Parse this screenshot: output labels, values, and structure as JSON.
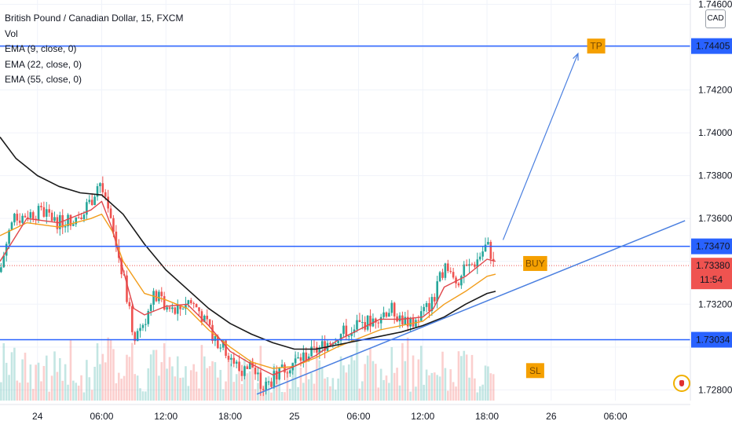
{
  "legend": {
    "title": "British Pound / Canadian Dollar, 15, FXCM",
    "vol": "Vol",
    "ema9": "EMA (9, close, 0)",
    "ema22": "EMA (22, close, 0)",
    "ema55": "EMA (55, close, 0)"
  },
  "currency": "CAD",
  "colors": {
    "up": "#26a69a",
    "down": "#ef5350",
    "ema9": "#e0474c",
    "ema22": "#f29d1b",
    "ema55": "#1a1a1a",
    "hline": "#2962ff",
    "label_box": "#f5a000",
    "price_box": "#ef5350"
  },
  "chart_data": {
    "type": "candlestick",
    "symbol": "GBPCAD",
    "timeframe": "15",
    "ylim": [
      1.7275,
      1.7462
    ],
    "y_ticks": [
      {
        "value": 1.728,
        "label": "1.72800"
      },
      {
        "value": 1.73,
        "label": ""
      },
      {
        "value": 1.732,
        "label": "1.73200"
      },
      {
        "value": 1.734,
        "label": ""
      },
      {
        "value": 1.736,
        "label": "1.73600"
      },
      {
        "value": 1.738,
        "label": "1.73800"
      },
      {
        "value": 1.74,
        "label": "1.74000"
      },
      {
        "value": 1.742,
        "label": "1.74200"
      },
      {
        "value": 1.744,
        "label": ""
      },
      {
        "value": 1.746,
        "label": "1.74600"
      }
    ],
    "x_ticks": [
      {
        "t": 0,
        "label": "24"
      },
      {
        "t": 6,
        "label": "06:00"
      },
      {
        "t": 12,
        "label": "12:00"
      },
      {
        "t": 18,
        "label": "18:00"
      },
      {
        "t": 24,
        "label": "25"
      },
      {
        "t": 30,
        "label": "06:00"
      },
      {
        "t": 36,
        "label": "12:00"
      },
      {
        "t": 42,
        "label": "18:00"
      },
      {
        "t": 48,
        "label": "26"
      },
      {
        "t": 54,
        "label": "06:00"
      }
    ],
    "xlim_hours": [
      -3.5,
      61
    ],
    "price_path": [
      [
        -3.5,
        1.7335
      ],
      [
        -2.5,
        1.7358
      ],
      [
        -1,
        1.7362
      ],
      [
        0.5,
        1.7363
      ],
      [
        2,
        1.7358
      ],
      [
        3.5,
        1.736
      ],
      [
        5,
        1.7368
      ],
      [
        5.8,
        1.7378
      ],
      [
        7,
        1.7355
      ],
      [
        8,
        1.7333
      ],
      [
        9,
        1.7305
      ],
      [
        10,
        1.7312
      ],
      [
        11,
        1.7325
      ],
      [
        12,
        1.7318
      ],
      [
        13,
        1.7316
      ],
      [
        14,
        1.7322
      ],
      [
        15,
        1.7318
      ],
      [
        16,
        1.7308
      ],
      [
        17,
        1.7302
      ],
      [
        18,
        1.7296
      ],
      [
        19,
        1.7288
      ],
      [
        20,
        1.7292
      ],
      [
        21,
        1.728
      ],
      [
        22,
        1.7285
      ],
      [
        23,
        1.729
      ],
      [
        24,
        1.7293
      ],
      [
        25,
        1.7296
      ],
      [
        26,
        1.7298
      ],
      [
        27,
        1.7302
      ],
      [
        28,
        1.7305
      ],
      [
        29,
        1.7308
      ],
      [
        30,
        1.731
      ],
      [
        31,
        1.7312
      ],
      [
        32,
        1.7315
      ],
      [
        33,
        1.7318
      ],
      [
        34,
        1.7313
      ],
      [
        35,
        1.731
      ],
      [
        36,
        1.7316
      ],
      [
        37,
        1.7322
      ],
      [
        38,
        1.7338
      ],
      [
        39,
        1.733
      ],
      [
        40,
        1.7336
      ],
      [
        41,
        1.734
      ],
      [
        42,
        1.7348
      ],
      [
        42.8,
        1.7338
      ]
    ],
    "ema9": [
      [
        -3.5,
        1.734
      ],
      [
        -1,
        1.736
      ],
      [
        2,
        1.7358
      ],
      [
        5,
        1.7364
      ],
      [
        6,
        1.7368
      ],
      [
        7,
        1.7355
      ],
      [
        8,
        1.7336
      ],
      [
        9,
        1.7318
      ],
      [
        10,
        1.7315
      ],
      [
        12,
        1.7319
      ],
      [
        14,
        1.732
      ],
      [
        16,
        1.731
      ],
      [
        18,
        1.7298
      ],
      [
        20,
        1.7292
      ],
      [
        22,
        1.7287
      ],
      [
        24,
        1.7291
      ],
      [
        26,
        1.7296
      ],
      [
        28,
        1.7303
      ],
      [
        30,
        1.7308
      ],
      [
        32,
        1.7313
      ],
      [
        34,
        1.7313
      ],
      [
        36,
        1.7314
      ],
      [
        37,
        1.7318
      ],
      [
        38,
        1.7328
      ],
      [
        40,
        1.7333
      ],
      [
        42,
        1.7341
      ],
      [
        42.8,
        1.734
      ]
    ],
    "ema22": [
      [
        -3.5,
        1.7352
      ],
      [
        -1,
        1.7358
      ],
      [
        2,
        1.7356
      ],
      [
        5,
        1.736
      ],
      [
        6,
        1.7362
      ],
      [
        7,
        1.7354
      ],
      [
        8,
        1.734
      ],
      [
        10,
        1.7325
      ],
      [
        12,
        1.7322
      ],
      [
        14,
        1.7318
      ],
      [
        16,
        1.7308
      ],
      [
        18,
        1.73
      ],
      [
        20,
        1.7293
      ],
      [
        22,
        1.729
      ],
      [
        24,
        1.7291
      ],
      [
        26,
        1.7295
      ],
      [
        28,
        1.73
      ],
      [
        30,
        1.7304
      ],
      [
        32,
        1.7308
      ],
      [
        34,
        1.731
      ],
      [
        36,
        1.7312
      ],
      [
        38,
        1.732
      ],
      [
        40,
        1.7326
      ],
      [
        42,
        1.7333
      ],
      [
        42.8,
        1.7334
      ]
    ],
    "ema55": [
      [
        -3.5,
        1.7398
      ],
      [
        -2,
        1.7388
      ],
      [
        0,
        1.738
      ],
      [
        2,
        1.7375
      ],
      [
        4,
        1.7372
      ],
      [
        6,
        1.7371
      ],
      [
        8,
        1.7362
      ],
      [
        10,
        1.7348
      ],
      [
        12,
        1.7336
      ],
      [
        14,
        1.7327
      ],
      [
        16,
        1.7318
      ],
      [
        18,
        1.7311
      ],
      [
        20,
        1.7306
      ],
      [
        22,
        1.7302
      ],
      [
        24,
        1.7299
      ],
      [
        26,
        1.7299
      ],
      [
        28,
        1.7301
      ],
      [
        30,
        1.7303
      ],
      [
        32,
        1.7305
      ],
      [
        34,
        1.7307
      ],
      [
        36,
        1.731
      ],
      [
        38,
        1.7314
      ],
      [
        40,
        1.732
      ],
      [
        42,
        1.7325
      ],
      [
        42.8,
        1.7326
      ]
    ],
    "horizontal_lines": [
      {
        "value": 1.74405,
        "label": "1.74405"
      },
      {
        "value": 1.7347,
        "label": "1.73470"
      },
      {
        "value": 1.73034,
        "label": "1.73034"
      }
    ],
    "last_price": {
      "value": 1.7338,
      "label": "1.73380",
      "countdown": "11:54"
    },
    "trendline": [
      [
        20.5,
        1.7278
      ],
      [
        60.5,
        1.7359
      ]
    ],
    "arrow": [
      [
        43.5,
        1.735
      ],
      [
        50.5,
        1.7437
      ]
    ],
    "annotations": [
      {
        "text": "TP",
        "t": 52.2,
        "value": 1.74405
      },
      {
        "text": "BUY",
        "t": 46.5,
        "value": 1.7339
      },
      {
        "text": "SL",
        "t": 46.5,
        "value": 1.7289
      }
    ]
  }
}
